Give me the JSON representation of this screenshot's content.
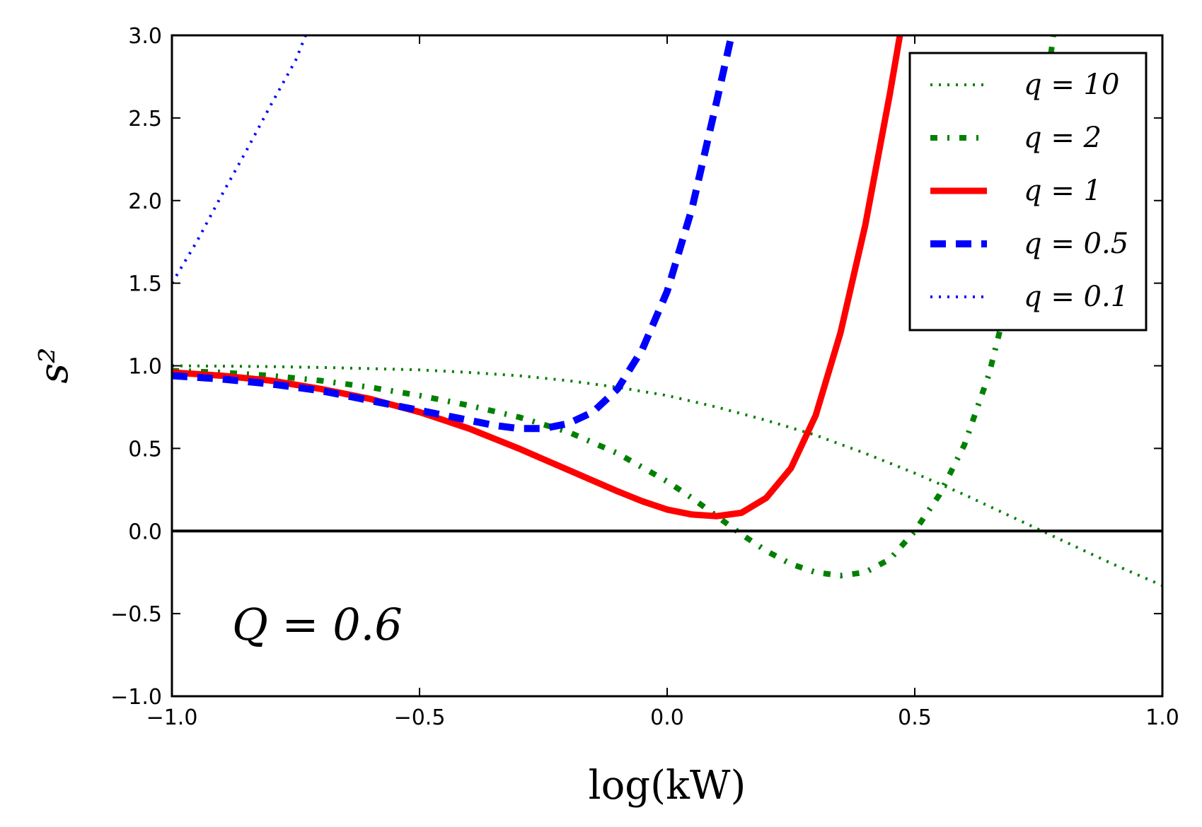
{
  "chart_data": {
    "type": "line",
    "xlabel": "log(kW)",
    "ylabel": "s²",
    "xlim": [
      -1.0,
      1.0
    ],
    "ylim": [
      -1.0,
      3.0
    ],
    "x_ticks": [
      -1.0,
      -0.5,
      0.0,
      0.5,
      1.0
    ],
    "x_tick_labels": [
      "−1.0",
      "−0.5",
      "0.0",
      "0.5",
      "1.0"
    ],
    "y_ticks": [
      -1.0,
      -0.5,
      0.0,
      0.5,
      1.0,
      1.5,
      2.0,
      2.5,
      3.0
    ],
    "y_tick_labels": [
      "−1.0",
      "−0.5",
      "0.0",
      "0.5",
      "1.0",
      "1.5",
      "2.0",
      "2.5",
      "3.0"
    ],
    "annotation": "Q = 0.6",
    "legend_position": "top-right",
    "grid": false,
    "hline_y": 0.0,
    "series": [
      {
        "name": "q = 10",
        "color": "#008000",
        "style": "dotted-thin",
        "x": [
          -1.0,
          -0.9,
          -0.8,
          -0.7,
          -0.6,
          -0.5,
          -0.4,
          -0.3,
          -0.2,
          -0.1,
          0.0,
          0.1,
          0.2,
          0.3,
          0.4,
          0.5,
          0.6,
          0.7,
          0.8,
          0.9,
          1.0
        ],
        "y": [
          1.0,
          0.998,
          0.995,
          0.99,
          0.983,
          0.975,
          0.96,
          0.94,
          0.91,
          0.87,
          0.82,
          0.75,
          0.67,
          0.58,
          0.47,
          0.35,
          0.22,
          0.08,
          -0.06,
          -0.2,
          -0.33
        ]
      },
      {
        "name": "q = 2",
        "color": "#008000",
        "style": "dashdot-thick",
        "x": [
          -1.0,
          -0.9,
          -0.8,
          -0.7,
          -0.6,
          -0.5,
          -0.4,
          -0.3,
          -0.2,
          -0.1,
          0.0,
          0.05,
          0.1,
          0.15,
          0.2,
          0.25,
          0.3,
          0.35,
          0.4,
          0.45,
          0.5,
          0.55,
          0.6,
          0.65,
          0.7,
          0.75,
          0.78
        ],
        "y": [
          0.97,
          0.96,
          0.94,
          0.91,
          0.87,
          0.82,
          0.76,
          0.69,
          0.6,
          0.47,
          0.3,
          0.2,
          0.09,
          -0.02,
          -0.12,
          -0.2,
          -0.25,
          -0.27,
          -0.25,
          -0.17,
          0.0,
          0.22,
          0.52,
          0.95,
          1.55,
          2.35,
          3.0
        ]
      },
      {
        "name": "q = 1",
        "color": "#ff0000",
        "style": "solid-thick",
        "x": [
          -1.0,
          -0.9,
          -0.8,
          -0.7,
          -0.6,
          -0.5,
          -0.4,
          -0.3,
          -0.2,
          -0.1,
          -0.05,
          0.0,
          0.05,
          0.1,
          0.15,
          0.2,
          0.25,
          0.3,
          0.35,
          0.4,
          0.45,
          0.47
        ],
        "y": [
          0.96,
          0.94,
          0.91,
          0.86,
          0.8,
          0.72,
          0.62,
          0.5,
          0.37,
          0.24,
          0.18,
          0.13,
          0.1,
          0.09,
          0.11,
          0.2,
          0.38,
          0.7,
          1.2,
          1.85,
          2.65,
          3.0
        ]
      },
      {
        "name": "q = 0.5",
        "color": "#0000ff",
        "style": "dashed-thick",
        "x": [
          -1.0,
          -0.9,
          -0.8,
          -0.7,
          -0.6,
          -0.5,
          -0.4,
          -0.35,
          -0.3,
          -0.25,
          -0.2,
          -0.15,
          -0.1,
          -0.05,
          0.0,
          0.05,
          0.1,
          0.13
        ],
        "y": [
          0.94,
          0.92,
          0.89,
          0.85,
          0.79,
          0.73,
          0.67,
          0.64,
          0.62,
          0.62,
          0.65,
          0.72,
          0.86,
          1.1,
          1.45,
          1.95,
          2.6,
          3.0
        ]
      },
      {
        "name": "q = 0.1",
        "color": "#0000ff",
        "style": "dotted-thin",
        "x": [
          -1.0,
          -0.95,
          -0.9,
          -0.85,
          -0.8,
          -0.75,
          -0.73
        ],
        "y": [
          1.5,
          1.75,
          2.03,
          2.3,
          2.58,
          2.85,
          3.0
        ]
      }
    ]
  }
}
